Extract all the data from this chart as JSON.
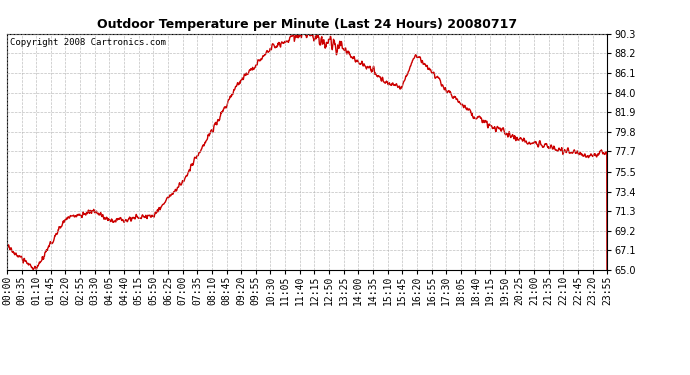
{
  "title": "Outdoor Temperature per Minute (Last 24 Hours) 20080717",
  "copyright_text": "Copyright 2008 Cartronics.com",
  "line_color": "#cc0000",
  "bg_color": "#ffffff",
  "plot_bg_color": "#ffffff",
  "grid_color": "#b0b0b0",
  "ylim": [
    65.0,
    90.3
  ],
  "yticks": [
    65.0,
    67.1,
    69.2,
    71.3,
    73.4,
    75.5,
    77.7,
    79.8,
    81.9,
    84.0,
    86.1,
    88.2,
    90.3
  ],
  "xtick_labels": [
    "00:00",
    "00:35",
    "01:10",
    "01:45",
    "02:20",
    "02:55",
    "03:30",
    "04:05",
    "04:40",
    "05:15",
    "05:50",
    "06:25",
    "07:00",
    "07:35",
    "08:10",
    "08:45",
    "09:20",
    "09:55",
    "10:30",
    "11:05",
    "11:40",
    "12:15",
    "12:50",
    "13:25",
    "14:00",
    "14:35",
    "15:10",
    "15:45",
    "16:20",
    "16:55",
    "17:30",
    "18:05",
    "18:40",
    "19:15",
    "19:50",
    "20:25",
    "21:00",
    "21:35",
    "22:10",
    "22:45",
    "23:20",
    "23:55"
  ],
  "line_width": 1.0,
  "title_fontsize": 9,
  "tick_fontsize": 7,
  "copyright_fontsize": 6.5
}
